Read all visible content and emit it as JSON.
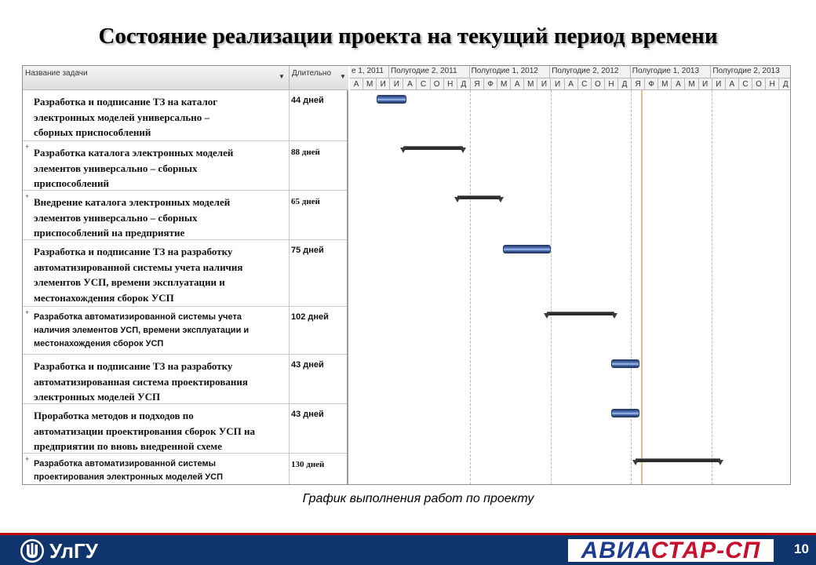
{
  "slide": {
    "title": "Состояние реализации проекта на текущий период времени",
    "caption": "График выполнения работ по проекту",
    "page_number": "10"
  },
  "gantt": {
    "columns": {
      "name": "Название задачи",
      "duration": "Длительно"
    },
    "timeline": {
      "halves": [
        "е 1, 2011",
        "Полугодие 2, 2011",
        "Полугодие 1, 2012",
        "Полугодие 2, 2012",
        "Полугодие 1, 2013",
        "Полугодие 2, 2013"
      ],
      "months": [
        "А",
        "М",
        "И",
        "И",
        "А",
        "С",
        "О",
        "Н",
        "Д",
        "Я",
        "Ф",
        "М",
        "А",
        "М",
        "И",
        "И",
        "А",
        "С",
        "О",
        "Н",
        "Д",
        "Я",
        "Ф",
        "М",
        "А",
        "М",
        "И",
        "И",
        "А",
        "С",
        "О",
        "Н",
        "Д"
      ]
    },
    "tasks": [
      {
        "name": "Разработка и подписание ТЗ на каталог\nэлектронных моделей универсально –\nсборных приспособлений",
        "duration": "44 дней",
        "kind": "task",
        "expandable": false,
        "start_month": 2,
        "span_months": 2.2
      },
      {
        "name": "Разработка каталога электронных моделей\nэлементов универсально – сборных\nприспособлений",
        "duration": "88 дней",
        "kind": "summary",
        "expandable": true,
        "start_month": 4,
        "span_months": 4.4
      },
      {
        "name": "Внедрение каталога электронных моделей\nэлементов универсально – сборных\nприспособлений на предприятие",
        "duration": "65 дней",
        "kind": "summary",
        "expandable": true,
        "start_month": 8,
        "span_months": 3.2
      },
      {
        "name": "Разработка и подписание ТЗ на разработку\nавтоматизированной системы учета наличия\nэлементов УСП, времени эксплуатации и\nместонахождения сборок УСП",
        "duration": "75 дней",
        "kind": "task",
        "expandable": false,
        "start_month": 11.4,
        "span_months": 3.6
      },
      {
        "name": "Разработка автоматизированной системы учета\nналичия элементов УСП, времени эксплуатации и\nместонахождения сборок УСП",
        "duration": "102 дней",
        "kind": "summary",
        "expandable": true,
        "start_month": 14.7,
        "span_months": 5.0
      },
      {
        "name": "Разработка и подписание ТЗ на разработку\nавтоматизированная система проектирования\nэлектронных моделей УСП",
        "duration": "43 дней",
        "kind": "task",
        "expandable": false,
        "start_month": 19.5,
        "span_months": 2.1
      },
      {
        "name": "Проработка методов и подходов по\nавтоматизации проектирования сборок УСП на\nпредприятии по вновь внедренной схеме",
        "duration": "43 дней",
        "kind": "task",
        "expandable": false,
        "start_month": 19.5,
        "span_months": 2.1
      },
      {
        "name": "Разработка автоматизированной системы\nпроектирования электронных моделей УСП",
        "duration": "130 дней",
        "kind": "summary",
        "expandable": true,
        "start_month": 21.3,
        "span_months": 6.3
      }
    ]
  },
  "footer": {
    "university": "УлГУ",
    "brand_part1": "АВИА",
    "brand_part2": "СТАР-СП"
  },
  "colors": {
    "footer_bg": "#10346c",
    "footer_accent": "#c00000",
    "task_bar": "#3f62a6",
    "summary_bar": "#2b2b2b",
    "today_line": "#f3b78a"
  }
}
